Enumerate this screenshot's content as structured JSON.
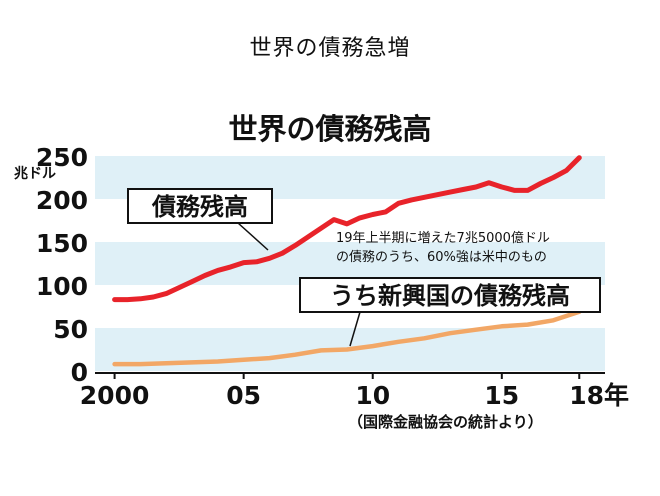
{
  "slide": {
    "title": "世界の債務急増"
  },
  "chart_data": {
    "type": "line",
    "title": "世界の債務残高",
    "ylabel": "兆ドル",
    "ylim": [
      0,
      250
    ],
    "yticks": [
      "0",
      "50",
      "100",
      "150",
      "200",
      "250"
    ],
    "xlim": [
      1999.9,
      2018.3
    ],
    "xtick_labels": [
      "2000",
      "05",
      "10",
      "15",
      "18年"
    ],
    "grid": "horizontal bands",
    "source": "（国際金融協会の統計より）",
    "annotation": [
      "19年上半期に増えた7兆5000億ドル",
      "の債務のうち、60%強は米中のもの"
    ],
    "series": [
      {
        "name": "債務残高",
        "color": "#e8232a",
        "x": [
          2000,
          2000.5,
          2001,
          2001.5,
          2002,
          2002.5,
          2003,
          2003.5,
          2004,
          2004.5,
          2005,
          2005.5,
          2006,
          2006.5,
          2007,
          2007.5,
          2008,
          2008.5,
          2009,
          2009.5,
          2010,
          2010.5,
          2011,
          2011.5,
          2012,
          2012.5,
          2013,
          2013.5,
          2014,
          2014.5,
          2015,
          2015.5,
          2016,
          2016.5,
          2017,
          2017.5,
          2018
        ],
        "values": [
          83,
          83,
          84,
          86,
          90,
          97,
          104,
          111,
          117,
          121,
          126,
          127,
          131,
          137,
          146,
          156,
          166,
          176,
          171,
          178,
          182,
          185,
          195,
          199,
          202,
          205,
          208,
          211,
          214,
          219,
          214,
          210,
          210,
          218,
          225,
          233,
          248
        ]
      },
      {
        "name": "うち新興国の債務残高",
        "color": "#f2a766",
        "x": [
          2000,
          2001,
          2002,
          2003,
          2004,
          2005,
          2006,
          2007,
          2008,
          2009,
          2010,
          2011,
          2012,
          2013,
          2014,
          2015,
          2016,
          2017,
          2018
        ],
        "values": [
          8,
          8,
          9,
          10,
          11,
          13,
          15,
          19,
          24,
          25,
          29,
          34,
          38,
          44,
          48,
          52,
          54,
          59,
          69
        ]
      }
    ]
  }
}
